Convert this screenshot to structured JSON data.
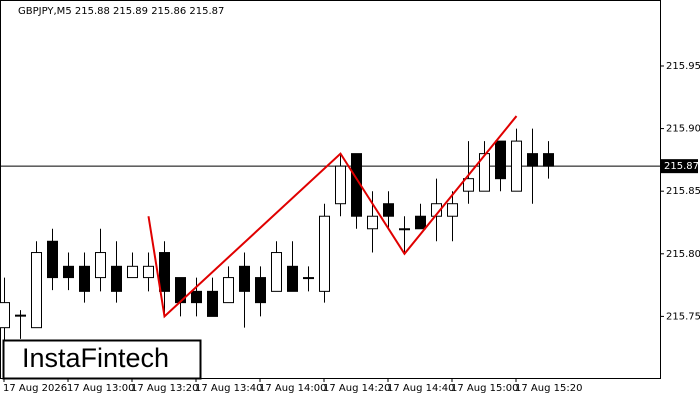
{
  "chart_data": {
    "type": "candlestick",
    "title": "GBPJPY,M5  215.88 215.89 215.86 215.87",
    "logo": "InstaFintech",
    "categories": [
      "17 Aug 2026",
      null,
      null,
      null,
      "17 Aug 13:00",
      null,
      null,
      null,
      "17 Aug 13:20",
      null,
      null,
      null,
      "17 Aug 13:40",
      null,
      null,
      null,
      "17 Aug 14:00",
      null,
      null,
      null,
      "17 Aug 14:20",
      null,
      null,
      null,
      "17 Aug 14:40",
      null,
      null,
      null,
      "17 Aug 15:00",
      null,
      null,
      null,
      "17 Aug 15:20",
      null,
      null
    ],
    "open": [
      215.741,
      215.751,
      215.741,
      215.81,
      215.79,
      215.79,
      215.781,
      215.79,
      215.781,
      215.781,
      215.801,
      215.781,
      215.77,
      215.77,
      215.761,
      215.79,
      215.781,
      215.77,
      215.79,
      215.781,
      215.77,
      215.84,
      215.88,
      215.82,
      215.84,
      215.82,
      215.83,
      215.83,
      215.83,
      215.85,
      215.85,
      215.89,
      215.85,
      215.88,
      215.88
    ],
    "high": [
      215.781,
      215.755,
      215.81,
      215.82,
      215.801,
      215.801,
      215.82,
      215.81,
      215.801,
      215.801,
      215.81,
      215.781,
      215.781,
      215.781,
      215.79,
      215.801,
      215.79,
      215.81,
      215.81,
      215.79,
      215.84,
      215.88,
      215.88,
      215.85,
      215.85,
      215.83,
      215.84,
      215.86,
      215.85,
      215.89,
      215.89,
      215.89,
      215.9,
      215.9,
      215.89
    ],
    "low": [
      215.731,
      215.732,
      215.741,
      215.771,
      215.771,
      215.761,
      215.77,
      215.761,
      215.781,
      215.77,
      215.75,
      215.75,
      215.75,
      215.75,
      215.761,
      215.741,
      215.75,
      215.77,
      215.77,
      215.77,
      215.761,
      215.83,
      215.82,
      215.801,
      215.82,
      215.801,
      215.82,
      215.81,
      215.81,
      215.84,
      215.85,
      215.85,
      215.85,
      215.84,
      215.86
    ],
    "close": [
      215.761,
      215.751,
      215.801,
      215.781,
      215.781,
      215.77,
      215.801,
      215.77,
      215.79,
      215.79,
      215.77,
      215.761,
      215.761,
      215.75,
      215.781,
      215.77,
      215.761,
      215.801,
      215.77,
      215.781,
      215.83,
      215.87,
      215.83,
      215.83,
      215.83,
      215.82,
      215.82,
      215.84,
      215.84,
      215.86,
      215.88,
      215.86,
      215.89,
      215.87,
      215.87
    ],
    "ylim": [
      215.7008,
      216.0027
    ],
    "yticks": [
      215.75,
      {
        "value": 215.8,
        "label": "215.80"
      },
      215.85,
      {
        "value": 215.9,
        "label": "215.90"
      },
      215.95
    ],
    "last_price": 215.87,
    "pattern": {
      "color": "#e00000",
      "x": [
        9,
        10,
        21,
        25,
        32
      ],
      "y": [
        215.83,
        215.75,
        215.88,
        215.8,
        215.91
      ]
    }
  }
}
